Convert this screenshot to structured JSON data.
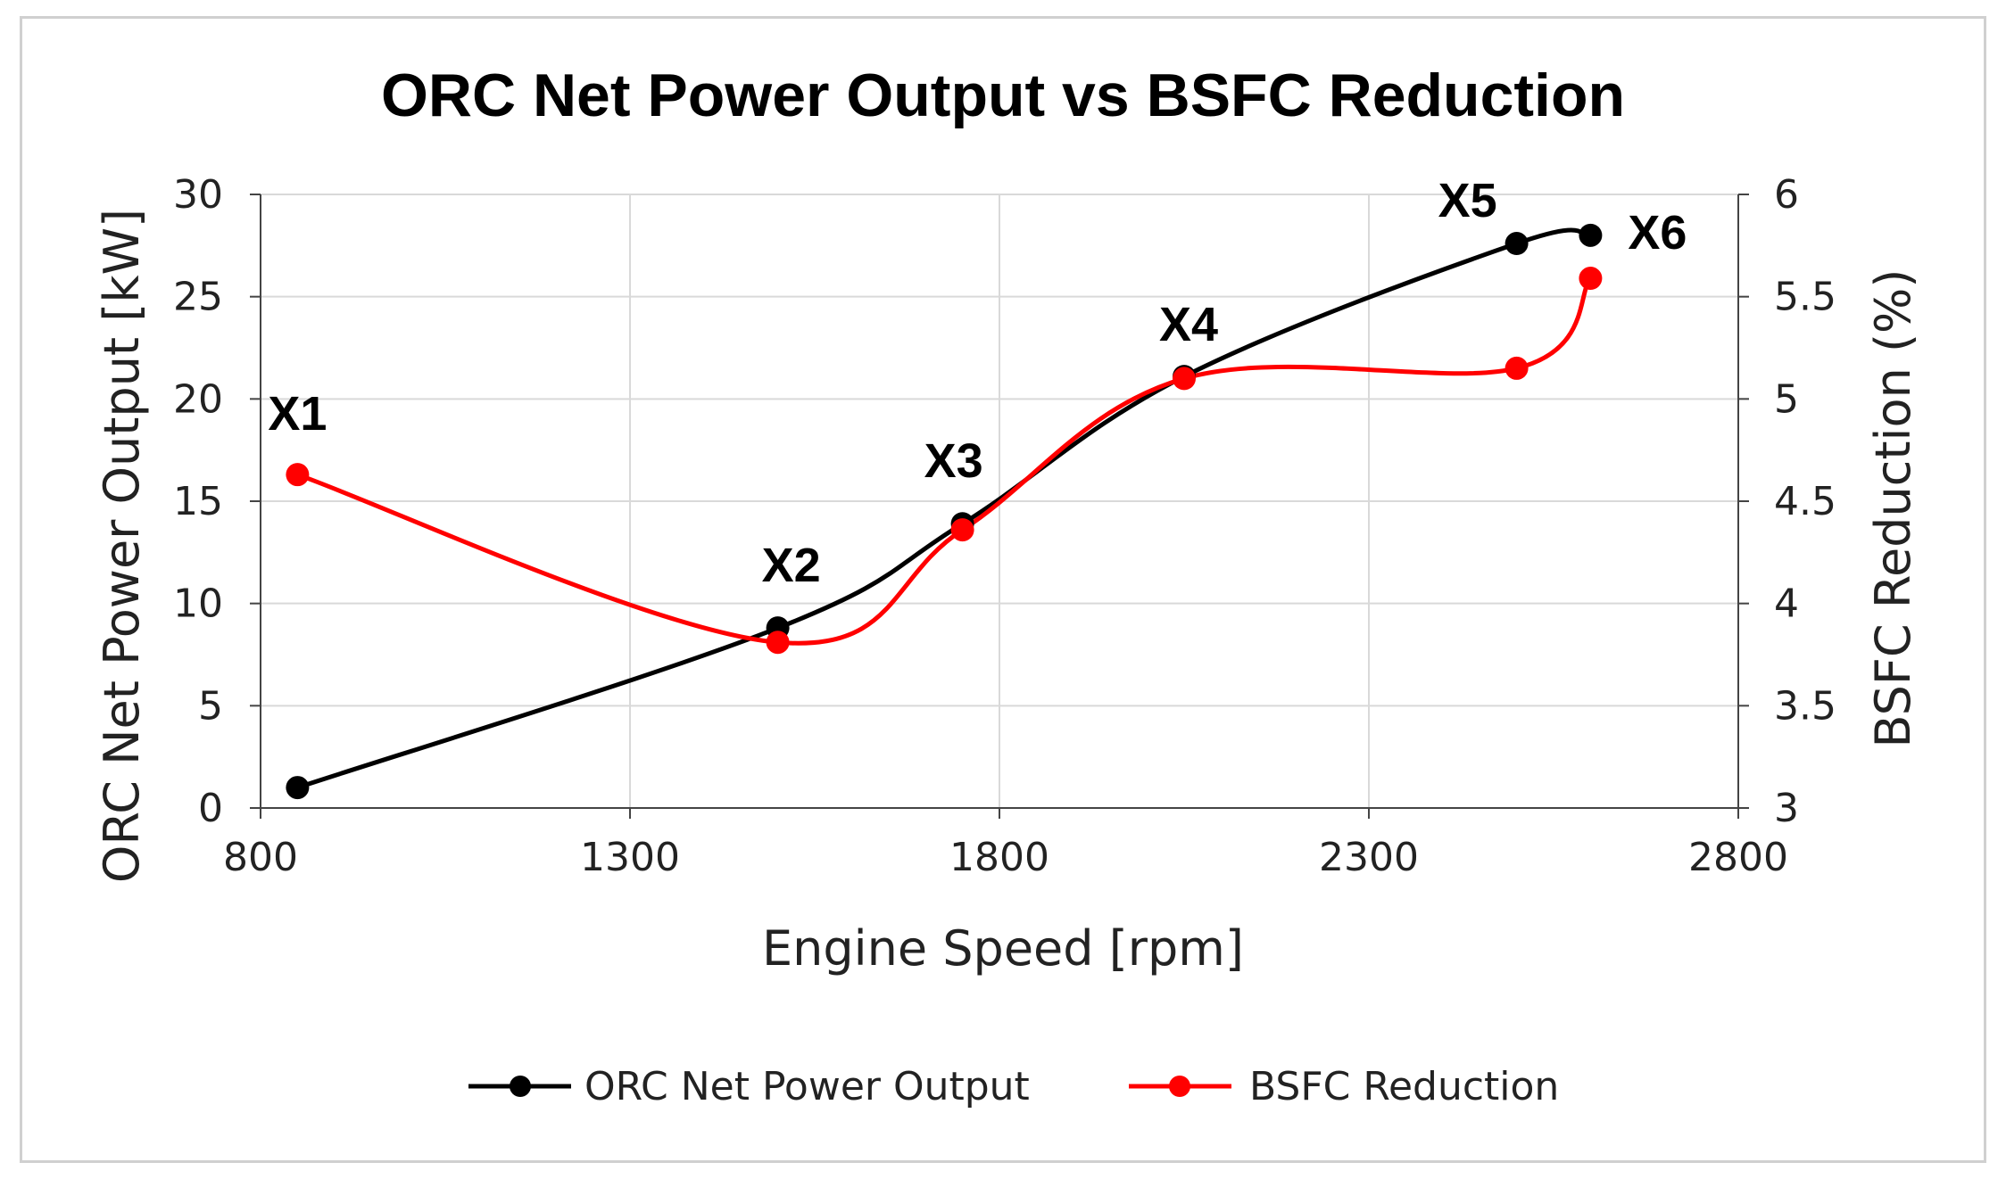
{
  "chart_data": {
    "type": "line",
    "title": "ORC Net Power Output vs BSFC Reduction",
    "xlabel": "Engine Speed [rpm]",
    "ylabel": "ORC Net Power Output [kW]",
    "y2label": "BSFC Reduction (%)",
    "xlim": [
      800,
      2800
    ],
    "ylim": [
      0,
      30
    ],
    "y2lim": [
      3,
      6
    ],
    "xticks": [
      "800",
      "1300",
      "1800",
      "2300",
      "2800"
    ],
    "yticks": [
      "0",
      "5",
      "10",
      "15",
      "20",
      "25",
      "30"
    ],
    "y2ticks": [
      "3",
      "3.5",
      "4",
      "4.5",
      "5",
      "5.5",
      "6"
    ],
    "grid": true,
    "legend_position": "bottom",
    "point_labels": [
      "X1",
      "X2",
      "X3",
      "X4",
      "X5",
      "X6"
    ],
    "series": [
      {
        "name": "ORC Net Power Output",
        "axis": "left",
        "color": "#000000",
        "x": [
          850,
          1500,
          1750,
          2050,
          2500,
          2600
        ],
        "values": [
          1,
          8.8,
          13.9,
          21.1,
          27.6,
          28
        ]
      },
      {
        "name": "BSFC Reduction",
        "axis": "right",
        "color": "#ff0000",
        "x": [
          850,
          1500,
          1750,
          2050,
          2500,
          2600
        ],
        "values": [
          4.63,
          3.81,
          4.36,
          5.1,
          5.15,
          5.59
        ]
      }
    ]
  }
}
